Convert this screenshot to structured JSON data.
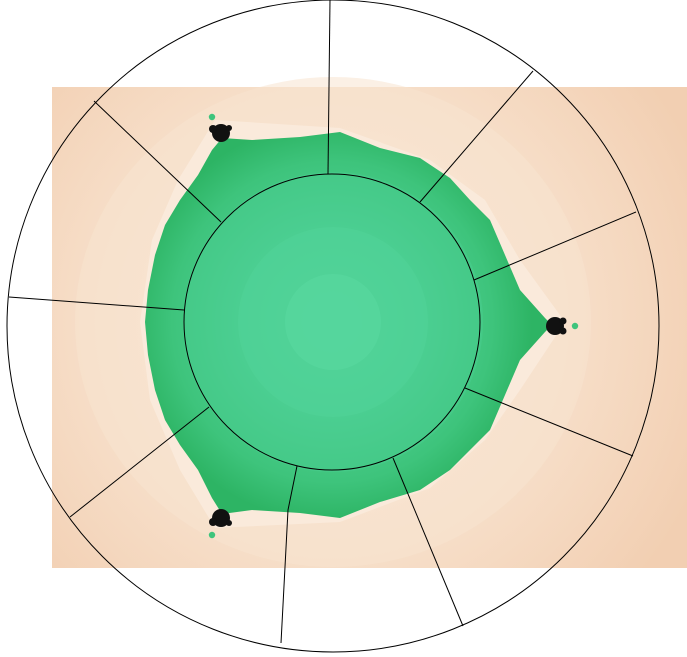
{
  "colors": {
    "page_background": "#ffffff",
    "fractal_outer": "#f3d3b8",
    "fractal_band_1": "#f5dac3",
    "fractal_band_2": "#f8e3cf",
    "fractal_band_3": "#faeadb",
    "set_dark": "#2db464",
    "set_mid": "#3ec47c",
    "set_light": "#4ccf92",
    "set_core": "#55d69c",
    "mini_set": "#111111",
    "outline": "#000000"
  },
  "diagram": {
    "type": "fractal-with-radial-sectors",
    "sector_count": 8,
    "rings": [
      "outer-ring",
      "inner-ring"
    ],
    "mini_sets": [
      "top-left",
      "right",
      "bottom-left"
    ]
  }
}
